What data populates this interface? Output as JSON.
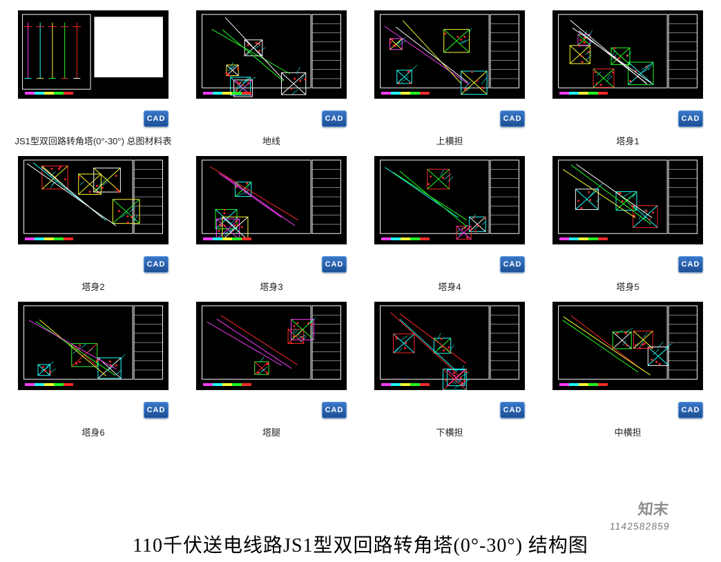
{
  "page_title": "110千伏送电线路JS1型双回路转角塔(0°-30°) 结构图",
  "watermark_text": "知末",
  "id_text": "1142582859",
  "badge_label": "CAD",
  "colors": {
    "canvas_bg": "#000000",
    "frame": "#ffffff",
    "red": "#ff2a2a",
    "green": "#22ff22",
    "cyan": "#22ffff",
    "magenta": "#ff3cff",
    "yellow": "#ffff33",
    "blue": "#2a6cff",
    "white": "#ffffff",
    "badge_top": "#3a77c9",
    "badge_bottom": "#1c4f93"
  },
  "strip_colors": [
    "#ff3cff",
    "#22ffff",
    "#ffff33",
    "#22ff22",
    "#ff2a2a"
  ],
  "thumbnails": [
    {
      "caption": "JS1型双回路转角塔(0°-30°) 总图材料表",
      "variant": 0
    },
    {
      "caption": "地线",
      "variant": 1
    },
    {
      "caption": "上横担",
      "variant": 2
    },
    {
      "caption": "塔身1",
      "variant": 3
    },
    {
      "caption": "塔身2",
      "variant": 4
    },
    {
      "caption": "塔身3",
      "variant": 5
    },
    {
      "caption": "塔身4",
      "variant": 6
    },
    {
      "caption": "塔身5",
      "variant": 7
    },
    {
      "caption": "塔身6",
      "variant": 8
    },
    {
      "caption": "塔腿",
      "variant": 9
    },
    {
      "caption": "下横担",
      "variant": 10
    },
    {
      "caption": "中横担",
      "variant": 11
    }
  ]
}
